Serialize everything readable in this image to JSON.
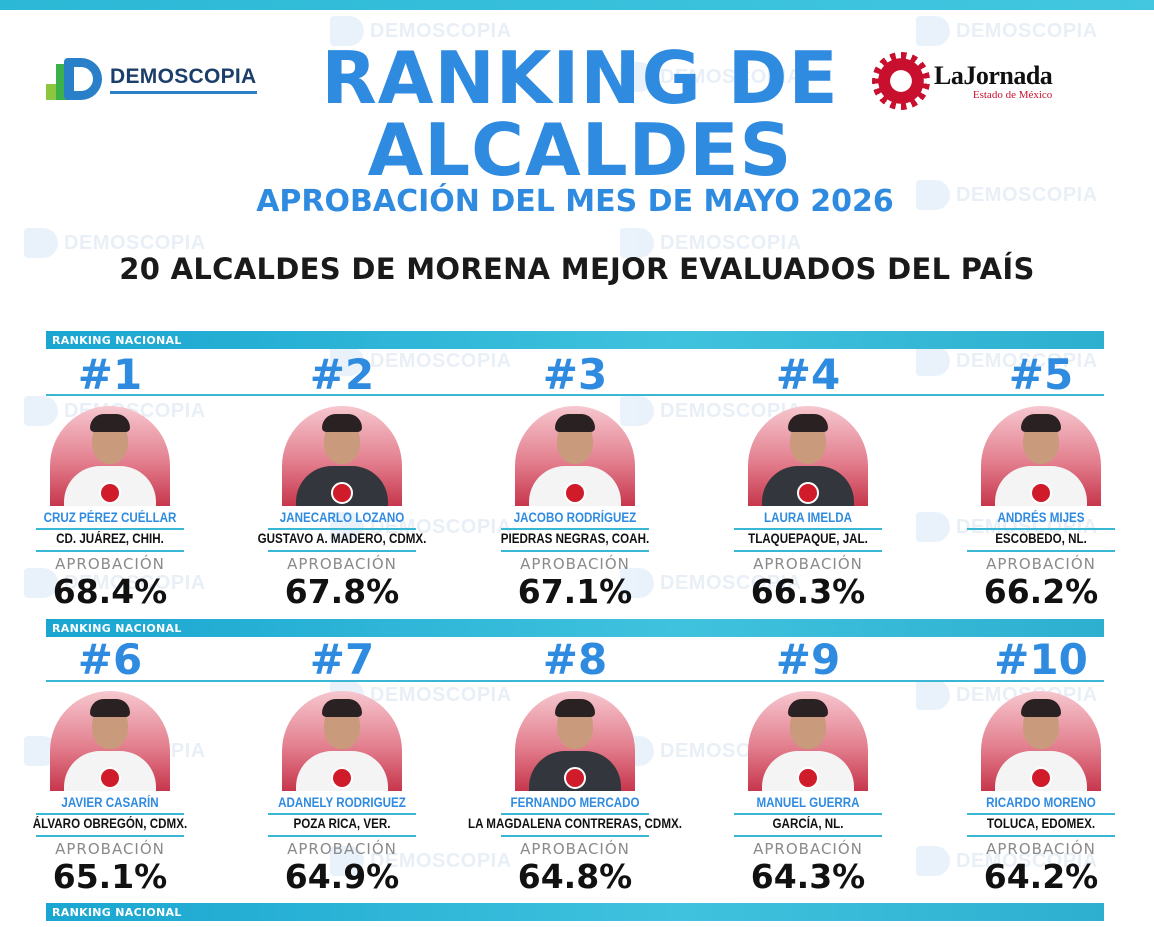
{
  "header": {
    "logo_left": "DEMOSCOPIA",
    "logo_right_name": "LaJornada",
    "logo_right_sub": "Estado de México",
    "title_line1": "RANKING DE",
    "title_line2": "ALCALDES",
    "subtitle": "APROBACIÓN DEL MES DE MAYO 2026",
    "heading": "20 ALCALDES DE MORENA MEJOR EVALUADOS DEL PAÍS"
  },
  "watermark": "DEMOSCOPIA",
  "section_label": "RANKING NACIONAL",
  "approval_label": "APROBACIÓN",
  "colors": {
    "accent_blue": "#2f8be0",
    "bar_cyan": "#3bb7d6",
    "photo_red": "#c7364c"
  },
  "rows": [
    {
      "label": "RANKING NACIONAL",
      "mayors": [
        {
          "rank": "#1",
          "name": "CRUZ PÉREZ CUÉLLAR",
          "place": "CD. JUÁREZ, CHIH.",
          "approval": "68.4%",
          "approval_value": 68.4
        },
        {
          "rank": "#2",
          "name": "JANECARLO LOZANO",
          "place": "GUSTAVO A. MADERO, CDMX.",
          "approval": "67.8%",
          "approval_value": 67.8
        },
        {
          "rank": "#3",
          "name": "JACOBO RODRÍGUEZ",
          "place": "PIEDRAS NEGRAS, COAH.",
          "approval": "67.1%",
          "approval_value": 67.1
        },
        {
          "rank": "#4",
          "name": "LAURA IMELDA",
          "place": "TLAQUEPAQUE, JAL.",
          "approval": "66.3%",
          "approval_value": 66.3
        },
        {
          "rank": "#5",
          "name": "ANDRÉS MIJES",
          "place": "ESCOBEDO, NL.",
          "approval": "66.2%",
          "approval_value": 66.2
        }
      ]
    },
    {
      "label": "RANKING NACIONAL",
      "mayors": [
        {
          "rank": "#6",
          "name": "JAVIER CASARÍN",
          "place": "ÁLVARO OBREGÓN, CDMX.",
          "approval": "65.1%",
          "approval_value": 65.1
        },
        {
          "rank": "#7",
          "name": "ADANELY RODRIGUEZ",
          "place": "POZA RICA, VER.",
          "approval": "64.9%",
          "approval_value": 64.9
        },
        {
          "rank": "#8",
          "name": "FERNANDO MERCADO",
          "place": "LA MAGDALENA CONTRERAS, CDMX.",
          "approval": "64.8%",
          "approval_value": 64.8
        },
        {
          "rank": "#9",
          "name": "MANUEL GUERRA",
          "place": "GARCÍA, NL.",
          "approval": "64.3%",
          "approval_value": 64.3
        },
        {
          "rank": "#10",
          "name": "RICARDO MORENO",
          "place": "TOLUCA, EDOMEX.",
          "approval": "64.2%",
          "approval_value": 64.2
        }
      ]
    }
  ],
  "bottom_label": "RANKING NACIONAL"
}
